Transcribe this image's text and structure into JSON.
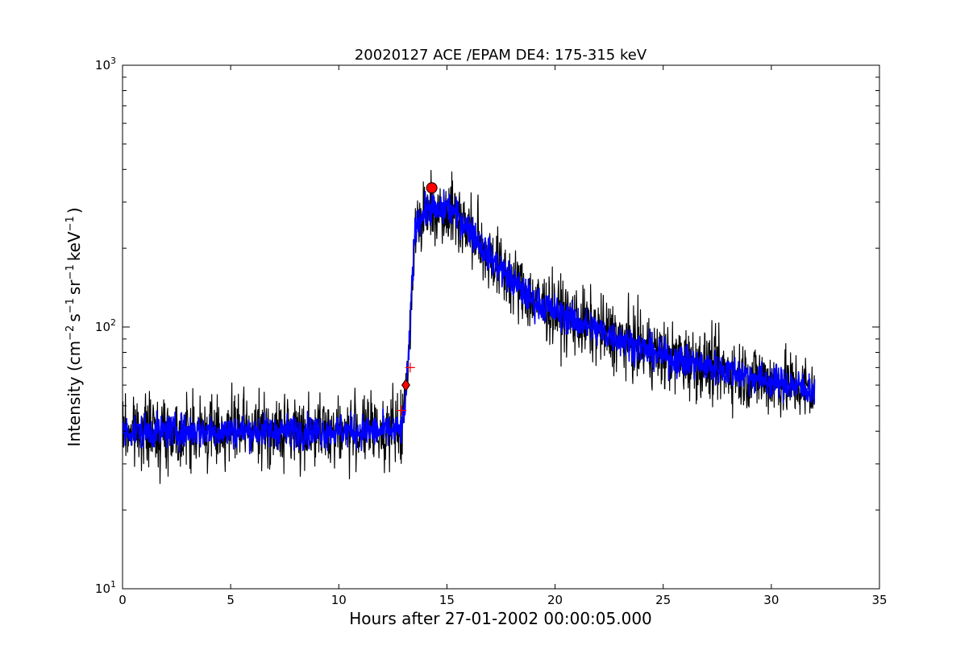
{
  "chart_data": {
    "type": "line",
    "title": "20020127 ACE /EPAM DE4: 175-315 keV",
    "xlabel": "Hours after 27-01-2002 00:00:05.000",
    "ylabel": {
      "text": "Intensity (cm",
      "exp1": "−2",
      "s": "s",
      "exp2": "−1",
      "sr": "sr",
      "exp3": "−1",
      "kev": "keV",
      "exp4": "−1",
      "close": ")"
    },
    "xlim": [
      0,
      35
    ],
    "ylim": [
      10,
      1000
    ],
    "yscale": "log",
    "grid": false,
    "x_ticks": [
      0,
      5,
      10,
      15,
      20,
      25,
      30,
      35
    ],
    "x_tick_labels": [
      "0",
      "5",
      "10",
      "15",
      "20",
      "25",
      "30",
      "35"
    ],
    "y_ticks": [
      10,
      100,
      1000
    ],
    "y_tick_labels": [
      {
        "base": "10",
        "exp": "1"
      },
      {
        "base": "10",
        "exp": "2"
      },
      {
        "base": "10",
        "exp": "3"
      }
    ],
    "series": [
      {
        "role": "raw",
        "color": "#000000",
        "noise": 0.19,
        "x": [
          0,
          2,
          4,
          6,
          8,
          10,
          12,
          12.9,
          13.0,
          13.1,
          13.2,
          13.3,
          13.4,
          13.5,
          13.6,
          13.8,
          14.0,
          14.3,
          14.6,
          15.0,
          15.5,
          16.0,
          16.5,
          17.0,
          18.0,
          19.0,
          20.0,
          21.0,
          22.0,
          23.0,
          24.0,
          25.0,
          26.0,
          27.0,
          28.0,
          29.0,
          30.0,
          31.0,
          32.0
        ],
        "y": [
          40,
          40,
          40,
          40,
          40,
          40,
          40,
          40,
          45,
          55,
          70,
          100,
          160,
          220,
          250,
          262,
          275,
          290,
          270,
          290,
          265,
          240,
          210,
          185,
          150,
          125,
          115,
          105,
          97,
          90,
          83,
          77,
          74,
          71,
          68,
          65,
          62,
          60,
          57
        ]
      },
      {
        "role": "smoothed",
        "color": "#0000ff",
        "noise": 0.09,
        "x": [
          0,
          2,
          4,
          6,
          8,
          10,
          12,
          12.9,
          13.0,
          13.1,
          13.2,
          13.3,
          13.4,
          13.5,
          13.6,
          13.8,
          14.0,
          14.3,
          14.6,
          15.0,
          15.5,
          16.0,
          16.5,
          17.0,
          18.0,
          19.0,
          20.0,
          21.0,
          22.0,
          23.0,
          24.0,
          25.0,
          26.0,
          27.0,
          28.0,
          29.0,
          30.0,
          31.0,
          32.0
        ],
        "y": [
          40,
          40,
          40,
          40,
          40,
          40,
          40,
          40,
          45,
          55,
          70,
          100,
          160,
          220,
          250,
          262,
          275,
          290,
          270,
          290,
          265,
          240,
          210,
          185,
          150,
          125,
          115,
          105,
          97,
          90,
          83,
          77,
          74,
          71,
          68,
          65,
          62,
          60,
          57
        ]
      }
    ],
    "markers": [
      {
        "shape": "circle",
        "x": 14.3,
        "y": 340,
        "color": "#ff0000"
      },
      {
        "shape": "diamond",
        "x": 13.1,
        "y": 60,
        "color": "#ff0000"
      },
      {
        "shape": "plus",
        "x": 13.3,
        "y": 70,
        "color": "#ff0000"
      },
      {
        "shape": "plus",
        "x": 12.9,
        "y": 48,
        "color": "#ff0000"
      }
    ],
    "colors": {
      "raw": "#000000",
      "smoothed": "#0000ff",
      "marker": "#ff0000"
    }
  }
}
